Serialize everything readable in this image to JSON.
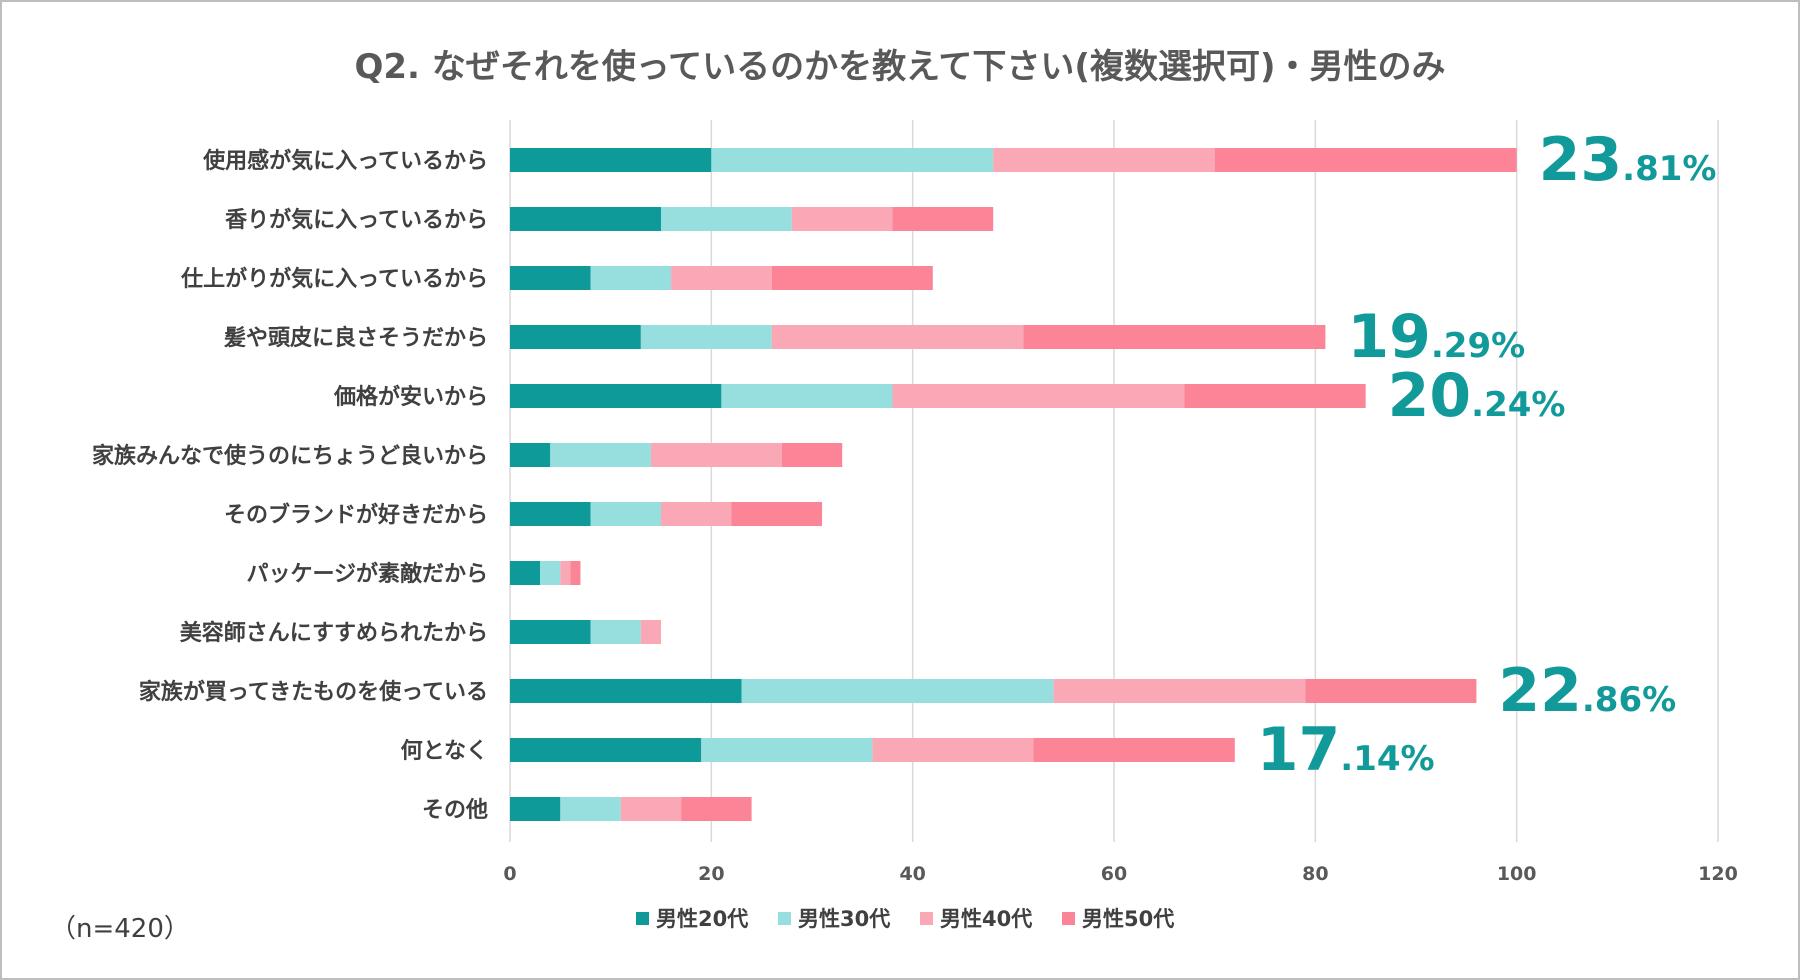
{
  "chart_data": {
    "type": "bar",
    "orientation": "horizontal",
    "stacked": true,
    "title": "Q2. なぜそれを使っているのかを教えて下さい(複数選択可)・男性のみ",
    "sample_note": "（n=420）",
    "categories": [
      "使用感が気に入っているから",
      "香りが気に入っているから",
      "仕上がりが気に入っているから",
      "髪や頭皮に良さそうだから",
      "価格が安いから",
      "家族みんなで使うのにちょうど良いから",
      "そのブランドが好きだから",
      "パッケージが素敵だから",
      "美容師さんにすすめられたから",
      "家族が買ってきたものを使っている",
      "何となく",
      "その他"
    ],
    "series": [
      {
        "name": "男性20代",
        "color": "#0f9a9a",
        "values": [
          20,
          15,
          8,
          13,
          21,
          4,
          8,
          3,
          8,
          23,
          19,
          5
        ]
      },
      {
        "name": "男性30代",
        "color": "#96dfde",
        "values": [
          28,
          13,
          8,
          13,
          17,
          10,
          7,
          2,
          5,
          31,
          17,
          6
        ]
      },
      {
        "name": "男性40代",
        "color": "#fba8b6",
        "values": [
          22,
          10,
          10,
          25,
          29,
          13,
          7,
          1,
          2,
          25,
          16,
          6
        ]
      },
      {
        "name": "男性50代",
        "color": "#fb8497",
        "values": [
          30,
          10,
          16,
          30,
          18,
          6,
          9,
          1,
          0,
          17,
          20,
          7
        ]
      }
    ],
    "xlim": [
      0,
      120
    ],
    "xticks": [
      0,
      20,
      40,
      60,
      80,
      100,
      120
    ],
    "grid": "vertical",
    "legend_position": "bottom",
    "annotation_color": "#129a9a",
    "annotations": [
      {
        "category": "使用感が気に入っているから",
        "int": "23",
        "dec": ".81%"
      },
      {
        "category": "髪や頭皮に良さそうだから",
        "int": "19",
        "dec": ".29%"
      },
      {
        "category": "価格が安いから",
        "int": "20",
        "dec": ".24%"
      },
      {
        "category": "家族が買ってきたものを使っている",
        "int": "22",
        "dec": ".86%"
      },
      {
        "category": "何となく",
        "int": "17",
        "dec": ".14%"
      }
    ]
  }
}
